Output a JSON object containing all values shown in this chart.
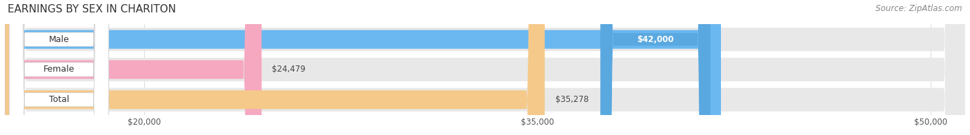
{
  "title": "EARNINGS BY SEX IN CHARITON",
  "source": "Source: ZipAtlas.com",
  "categories": [
    "Male",
    "Female",
    "Total"
  ],
  "values": [
    42000,
    24479,
    35278
  ],
  "bar_colors": [
    "#6bb8f0",
    "#f5a8c0",
    "#f5c98a"
  ],
  "bar_label_bg_colors": [
    "#5aa8e0",
    "#e898b0",
    "#e8b870"
  ],
  "bar_labels": [
    "$42,000",
    "$24,479",
    "$35,278"
  ],
  "xmin": 20000,
  "xmax": 50000,
  "xticks": [
    20000,
    35000,
    50000
  ],
  "xtick_labels": [
    "$20,000",
    "$35,000",
    "$50,000"
  ],
  "fig_bg": "#ffffff",
  "row_bg": "#ebebeb",
  "title_fontsize": 11,
  "source_fontsize": 8.5,
  "bar_label_fontsize": 8.5,
  "cat_label_fontsize": 9,
  "tick_fontsize": 8.5,
  "bar_height": 0.62,
  "fig_width": 14.06,
  "fig_height": 1.96
}
